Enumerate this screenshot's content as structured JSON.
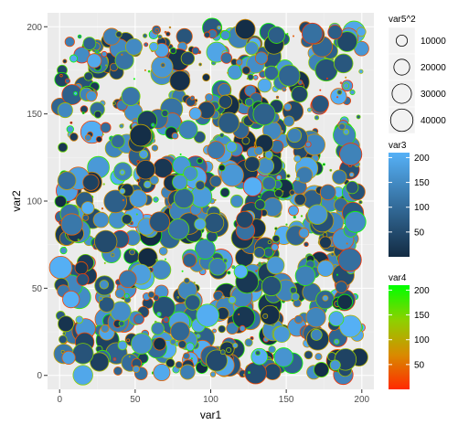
{
  "chart_data": {
    "type": "scatter",
    "title": "",
    "xlabel": "var1",
    "ylabel": "var2",
    "xlim": [
      -8,
      208
    ],
    "ylim": [
      -8,
      208
    ],
    "x_ticks": [
      0,
      50,
      100,
      150,
      200
    ],
    "y_ticks": [
      0,
      50,
      100,
      150,
      200
    ],
    "grid": true,
    "background": "#ebebeb",
    "n_points": 1000,
    "legends": {
      "size": {
        "title": "var5^2",
        "breaks": [
          10000,
          20000,
          30000,
          40000
        ],
        "labels": [
          "10000",
          "20000",
          "30000",
          "40000"
        ],
        "max_value": 45000
      },
      "fill": {
        "title": "var3",
        "low_color": "#132b43",
        "high_color": "#56b1f7",
        "range": [
          0,
          210
        ],
        "breaks": [
          50,
          100,
          150,
          200
        ],
        "labels": [
          "50",
          "100",
          "150",
          "200"
        ]
      },
      "outline": {
        "title": "var4",
        "colors": [
          "#ff2a00",
          "#d98a00",
          "#8fd000",
          "#00ff00"
        ],
        "range": [
          0,
          210
        ],
        "breaks": [
          50,
          100,
          150,
          200
        ],
        "labels": [
          "50",
          "100",
          "150",
          "200"
        ]
      }
    }
  }
}
